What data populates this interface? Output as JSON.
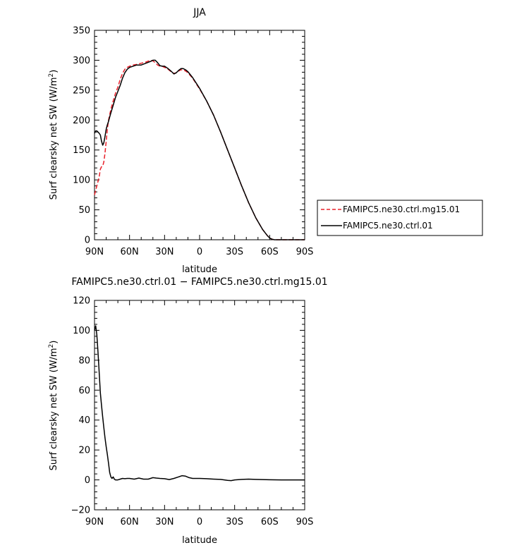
{
  "chart_data": [
    {
      "type": "line",
      "title": "JJA",
      "xlabel": "latitude",
      "ylabel": "Surf clearsky net SW (W/m²)",
      "ylabel_parts": {
        "main": "Surf clearsky net SW (W/m",
        "sup": "2",
        "end": ")"
      },
      "xlim": [
        90,
        -90
      ],
      "ylim": [
        0,
        350
      ],
      "x_ticks": [
        90,
        60,
        30,
        0,
        -30,
        -60,
        -90
      ],
      "x_tick_labels": [
        "90N",
        "60N",
        "30N",
        "0",
        "30S",
        "60S",
        "90S"
      ],
      "y_ticks": [
        0,
        50,
        100,
        150,
        200,
        250,
        300,
        350
      ],
      "y_tick_labels": [
        "0",
        "50",
        "100",
        "150",
        "200",
        "250",
        "300",
        "350"
      ],
      "legend": [
        "FAMIPC5.ne30.ctrl.mg15.01",
        "FAMIPC5.ne30.ctrl.01"
      ],
      "legend_position": "right",
      "series": [
        {
          "name": "FAMIPC5.ne30.ctrl.mg15.01",
          "color": "#e8202a",
          "dash": true,
          "x": [
            90,
            88,
            86,
            85,
            84,
            83,
            82,
            81,
            80,
            79,
            78,
            76,
            74,
            72,
            70,
            68,
            66,
            64,
            62,
            60,
            57,
            54,
            50,
            46,
            42,
            40,
            38,
            36,
            34,
            32,
            30,
            27,
            24,
            22,
            20,
            18,
            16,
            14,
            12,
            10,
            6,
            0,
            -6,
            -12,
            -18,
            -24,
            -30,
            -36,
            -42,
            -48,
            -54,
            -58,
            -60,
            -62,
            -64,
            -66,
            -68,
            -70,
            -74,
            -80,
            -90
          ],
          "y": [
            75,
            90,
            105,
            118,
            122,
            123,
            130,
            145,
            165,
            185,
            200,
            218,
            232,
            245,
            255,
            268,
            278,
            285,
            288,
            290,
            292,
            293,
            295,
            297,
            300,
            299,
            296,
            292,
            290,
            290,
            288,
            285,
            280,
            278,
            279,
            282,
            284,
            284,
            282,
            279,
            270,
            252,
            232,
            208,
            180,
            150,
            120,
            90,
            62,
            37,
            17,
            7,
            3,
            1,
            0,
            0,
            0,
            0,
            0,
            0,
            0
          ]
        },
        {
          "name": "FAMIPC5.ne30.ctrl.01",
          "color": "#000000",
          "dash": false,
          "x": [
            90,
            89,
            88,
            87,
            86,
            85,
            84,
            83,
            82,
            81,
            80,
            79,
            78,
            77,
            76,
            74,
            72,
            70,
            68,
            66,
            64,
            62,
            60,
            57,
            54,
            50,
            46,
            42,
            40,
            38,
            36,
            34,
            32,
            30,
            27,
            24,
            22,
            20,
            18,
            16,
            14,
            12,
            10,
            6,
            0,
            -6,
            -12,
            -18,
            -24,
            -30,
            -36,
            -42,
            -48,
            -54,
            -58,
            -60,
            -62,
            -64,
            -66,
            -68,
            -70,
            -74,
            -80,
            -90
          ],
          "y": [
            178,
            182,
            182,
            180,
            178,
            175,
            165,
            158,
            162,
            173,
            185,
            192,
            198,
            205,
            212,
            225,
            238,
            248,
            258,
            270,
            279,
            285,
            288,
            290,
            292,
            292,
            295,
            298,
            300,
            300,
            296,
            291,
            290,
            290,
            286,
            281,
            277,
            279,
            283,
            286,
            286,
            284,
            281,
            271,
            253,
            232,
            208,
            180,
            150,
            120,
            90,
            62,
            37,
            17,
            7,
            3,
            1,
            0,
            0,
            0,
            0,
            0,
            0,
            0
          ]
        }
      ]
    },
    {
      "type": "line",
      "title": "FAMIPC5.ne30.ctrl.01 − FAMIPC5.ne30.ctrl.mg15.01",
      "xlabel": "latitude",
      "ylabel": "Surf clearsky net SW (W/m²)",
      "ylabel_parts": {
        "main": "Surf clearsky net SW (W/m",
        "sup": "2",
        "end": ")"
      },
      "xlim": [
        90,
        -90
      ],
      "ylim": [
        -20,
        120
      ],
      "x_ticks": [
        90,
        60,
        30,
        0,
        -30,
        -60,
        -90
      ],
      "x_tick_labels": [
        "90N",
        "60N",
        "30N",
        "0",
        "30S",
        "60S",
        "90S"
      ],
      "y_ticks": [
        -20,
        0,
        20,
        40,
        60,
        80,
        100,
        120
      ],
      "y_tick_labels": [
        "−20",
        "0",
        "20",
        "40",
        "60",
        "80",
        "100",
        "120"
      ],
      "series": [
        {
          "color": "#000000",
          "dash": false,
          "x": [
            90,
            89,
            88,
            87,
            86,
            85,
            84,
            83,
            82,
            81,
            80,
            79,
            78,
            77,
            76,
            75,
            74,
            73,
            72,
            70,
            68,
            66,
            64,
            62,
            60,
            56,
            52,
            48,
            44,
            40,
            37,
            34,
            30,
            26,
            22,
            18,
            15,
            12,
            9,
            6,
            0,
            -6,
            -12,
            -18,
            -24,
            -27,
            -30,
            -36,
            -42,
            -48,
            -54,
            -60,
            -70,
            -80,
            -90
          ],
          "y": [
            100,
            103,
            97,
            85,
            72,
            58,
            50,
            42,
            35,
            28,
            22,
            17,
            11,
            5,
            2,
            1,
            2,
            0.5,
            0,
            0,
            0.5,
            1,
            0.8,
            1,
            1,
            0.5,
            1.2,
            0.5,
            0.5,
            1.5,
            1.2,
            1,
            0.8,
            0.2,
            1,
            2,
            2.8,
            2.5,
            1.5,
            1,
            1,
            0.8,
            0.5,
            0.3,
            -0.3,
            -0.5,
            0,
            0.3,
            0.5,
            0.3,
            0.2,
            0.1,
            0,
            0,
            0
          ]
        }
      ]
    }
  ]
}
